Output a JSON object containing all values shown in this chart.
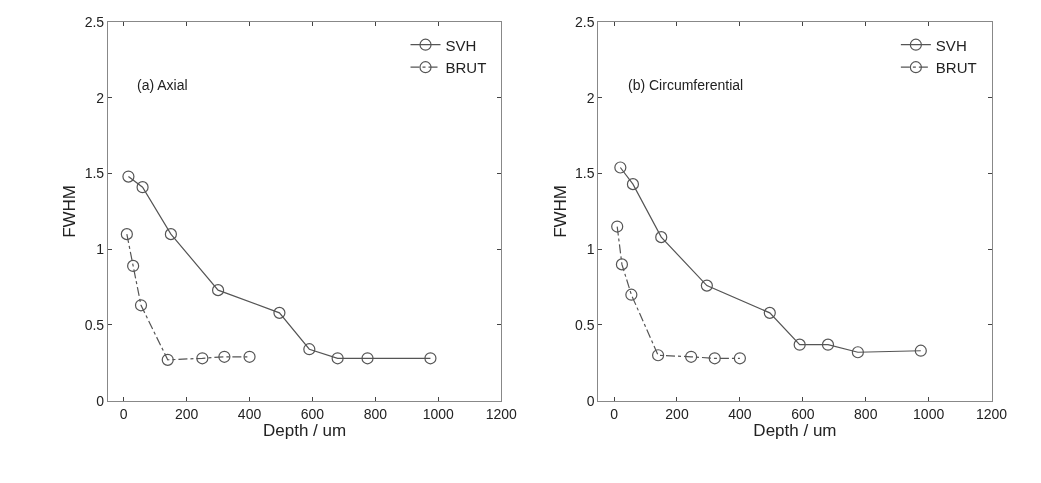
{
  "chart_data": [
    {
      "type": "line",
      "xlabel": "Depth / um",
      "ylabel": "FWHM",
      "annotations": [
        "(a) Axial"
      ],
      "xlim": [
        -50,
        1200
      ],
      "xticks": [
        0,
        200,
        400,
        600,
        800,
        1000,
        1200
      ],
      "ylim": [
        0,
        2.5
      ],
      "yticks": [
        0,
        0.5,
        1,
        1.5,
        2,
        2.5
      ],
      "legend": "top right",
      "marker": "circle",
      "series": [
        {
          "name": "SVH",
          "color": "#555555",
          "line_style": "solid",
          "x": [
            15,
            60,
            150,
            300,
            495,
            590,
            680,
            775,
            975
          ],
          "values": [
            1.48,
            1.41,
            1.1,
            0.73,
            0.58,
            0.34,
            0.28,
            0.28,
            0.28
          ]
        },
        {
          "name": "BRUT",
          "color": "#555555",
          "line_style": "dashed",
          "x": [
            10,
            30,
            55,
            140,
            250,
            320,
            400
          ],
          "values": [
            1.1,
            0.89,
            0.63,
            0.27,
            0.28,
            0.29,
            0.29
          ]
        }
      ]
    },
    {
      "type": "line",
      "xlabel": "Depth / um",
      "ylabel": "FWHM",
      "annotations": [
        "(b) Circumferential"
      ],
      "xlim": [
        -50,
        1200
      ],
      "xticks": [
        0,
        200,
        400,
        600,
        800,
        1000,
        1200
      ],
      "ylim": [
        0,
        2.5
      ],
      "yticks": [
        0,
        0.5,
        1,
        1.5,
        2,
        2.5
      ],
      "legend": "top right",
      "marker": "circle",
      "series": [
        {
          "name": "SVH",
          "color": "#555555",
          "line_style": "solid",
          "x": [
            20,
            60,
            150,
            295,
            495,
            590,
            680,
            775,
            975
          ],
          "values": [
            1.54,
            1.43,
            1.08,
            0.76,
            0.58,
            0.37,
            0.37,
            0.32,
            0.33
          ]
        },
        {
          "name": "BRUT",
          "color": "#555555",
          "line_style": "dashed",
          "x": [
            10,
            25,
            55,
            140,
            245,
            320,
            400
          ],
          "values": [
            1.15,
            0.9,
            0.7,
            0.3,
            0.29,
            0.28,
            0.28
          ]
        }
      ]
    }
  ]
}
